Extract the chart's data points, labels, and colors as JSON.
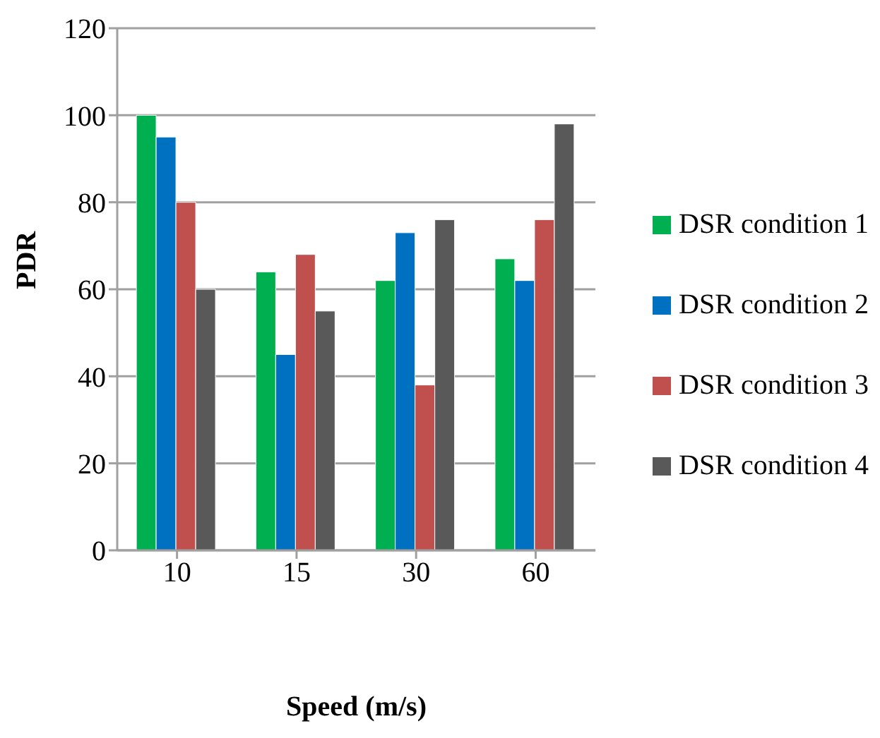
{
  "chart_data": {
    "type": "bar",
    "xlabel": "Speed (m/s)",
    "ylabel": "PDR",
    "categories": [
      "10",
      "15",
      "30",
      "60"
    ],
    "series": [
      {
        "name": "DSR condition 1",
        "color": "#00b050",
        "values": [
          100,
          64,
          62,
          67
        ]
      },
      {
        "name": "DSR condition 2",
        "color": "#0070c0",
        "values": [
          95,
          45,
          73,
          62
        ]
      },
      {
        "name": "DSR condition 3",
        "color": "#c0504d",
        "values": [
          80,
          68,
          38,
          76
        ]
      },
      {
        "name": "DSR condition 4",
        "color": "#595959",
        "values": [
          60,
          55,
          76,
          98
        ]
      }
    ],
    "ylim": [
      0,
      120
    ],
    "yticks": [
      0,
      20,
      40,
      60,
      80,
      100,
      120
    ],
    "grid": "y",
    "legend": "right"
  }
}
